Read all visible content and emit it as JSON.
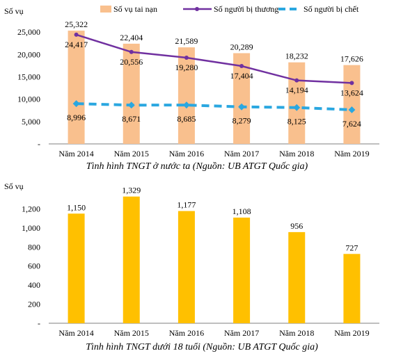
{
  "colors": {
    "accidents_top": "#F9C08E",
    "injured": "#7030A0",
    "deaths": "#2AA7E0",
    "accidents_bottom": "#FFC000",
    "axis": "#7f7f7f"
  },
  "chart_data": [
    {
      "type": "bar",
      "title": "Tình hình TNGT ở nước ta (Nguồn: UB ATGT Quốc gia)",
      "ylabel": "Số vụ",
      "categories": [
        "Năm 2014",
        "Năm 2015",
        "Năm 2016",
        "Năm 2017",
        "Năm 2018",
        "Năm 2019"
      ],
      "ylim": [
        0,
        30000
      ],
      "yticks": [
        0,
        5000,
        10000,
        15000,
        20000,
        25000
      ],
      "ytick_labels": [
        "-",
        "5,000",
        "10,000",
        "15,000",
        "20,000",
        "25,000"
      ],
      "legend_position": "top",
      "series": [
        {
          "name": "Số vụ tai nạn",
          "type": "bar",
          "values": [
            25322,
            22404,
            21589,
            20289,
            18232,
            17626
          ],
          "labels": [
            "25,322",
            "22,404",
            "21,589",
            "20,289",
            "18,232",
            "17,626"
          ]
        },
        {
          "name": "Số người bị thương",
          "type": "line",
          "values": [
            24417,
            20556,
            19280,
            17404,
            14194,
            13624
          ],
          "labels": [
            "24,417",
            "20,556",
            "19,280",
            "17,404",
            "14,194",
            "13,624"
          ]
        },
        {
          "name": "Số người bị chết",
          "type": "line",
          "values": [
            8996,
            8671,
            8685,
            8279,
            8125,
            7624
          ],
          "labels": [
            "8,996",
            "8,671",
            "8,685",
            "8,279",
            "8,125",
            "7,624"
          ]
        }
      ]
    },
    {
      "type": "bar",
      "title": "Tình hình TNGT dưới 18 tuổi (Nguồn: UB ATGT Quốc gia)",
      "ylabel": "Số vụ",
      "categories": [
        "Năm 2014",
        "Năm 2015",
        "Năm 2016",
        "Năm 2017",
        "Năm 2018",
        "Năm 2019"
      ],
      "ylim": [
        0,
        1400
      ],
      "yticks": [
        0,
        200,
        400,
        600,
        800,
        1000,
        1200
      ],
      "ytick_labels": [
        "-",
        "200",
        "400",
        "600",
        "800",
        "1,000",
        "1,200"
      ],
      "series": [
        {
          "values": [
            1150,
            1329,
            1177,
            1108,
            956,
            727
          ],
          "labels": [
            "1,150",
            "1,329",
            "1,177",
            "1,108",
            "956",
            "727"
          ]
        }
      ]
    }
  ]
}
